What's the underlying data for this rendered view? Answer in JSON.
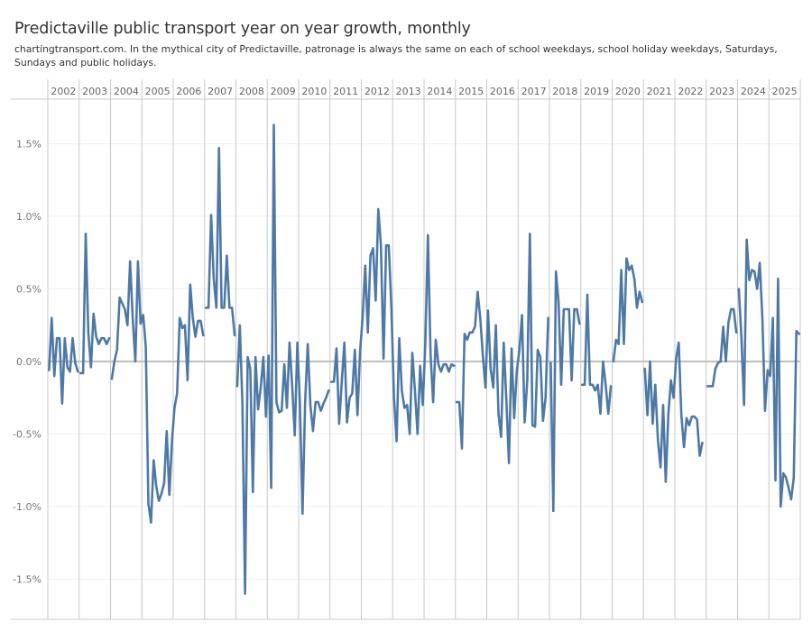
{
  "header": {
    "title": "Predictaville public transport year on year growth, monthly",
    "subtitle": "chartingtransport.com.  In the mythical city of Predictaville, patronage is always the same on each of school weekdays, school holiday weekdays, Saturdays, Sundays and public holidays."
  },
  "colors": {
    "line": "#4e79a7",
    "grid": "#efefef",
    "divider": "#c8c8c8",
    "zero": "#c0c0c0",
    "text": "#333333"
  },
  "chart_data": {
    "type": "line",
    "title": "Predictaville public transport year on year growth, monthly",
    "xlabel": "",
    "ylabel": "",
    "x_grouping": "year columns, 12 months each",
    "years": [
      "2002",
      "2003",
      "2004",
      "2005",
      "2006",
      "2007",
      "2008",
      "2009",
      "2010",
      "2011",
      "2012",
      "2013",
      "2014",
      "2015",
      "2016",
      "2017",
      "2018",
      "2019",
      "2020",
      "2021",
      "2022",
      "2023",
      "2024",
      "2025"
    ],
    "y_ticks": [
      {
        "value": 1.5,
        "label": "1.5%"
      },
      {
        "value": 1.0,
        "label": "1.0%"
      },
      {
        "value": 0.5,
        "label": "0.5%"
      },
      {
        "value": 0.0,
        "label": "0.0%"
      },
      {
        "value": -0.5,
        "label": "-0.5%"
      },
      {
        "value": -1.0,
        "label": "-1.0%"
      },
      {
        "value": -1.5,
        "label": "-1.5%"
      }
    ],
    "ylim": [
      -1.78,
      1.8
    ],
    "grid": true,
    "legend": "none",
    "series": [
      {
        "name": "Year on year growth (%)",
        "unit": "%",
        "values_by_year": {
          "2002": [
            -0.06,
            0.3,
            -0.1,
            0.16,
            0.16,
            -0.29,
            0.16,
            -0.04,
            -0.07,
            0.16,
            -0.01,
            -0.07
          ],
          "2003": [
            -0.08,
            -0.08,
            0.88,
            0.2,
            -0.04,
            0.33,
            0.17,
            0.12,
            0.16,
            0.16,
            0.12,
            0.16
          ],
          "2004": [
            -0.12,
            0.0,
            0.08,
            0.44,
            0.4,
            0.36,
            0.25,
            0.69,
            0.3,
            0.0,
            0.69,
            0.26
          ],
          "2005": [
            0.32,
            0.1,
            -0.98,
            -1.11,
            -0.68,
            -0.86,
            -0.96,
            -0.91,
            -0.84,
            -0.48,
            -0.92,
            -0.55
          ],
          "2006": [
            -0.32,
            -0.22,
            0.3,
            0.23,
            0.25,
            -0.13,
            0.53,
            0.3,
            0.17,
            0.28,
            0.28,
            0.18
          ],
          "2007": [
            0.37,
            0.37,
            1.01,
            0.57,
            0.37,
            1.47,
            0.37,
            0.37,
            0.73,
            0.37,
            0.37,
            0.18
          ],
          "2008": [
            -0.17,
            0.25,
            -0.29,
            -1.6,
            0.03,
            -0.05,
            -0.9,
            0.03,
            -0.33,
            -0.18,
            0.03,
            -0.38
          ],
          "2009": [
            0.04,
            -0.87,
            1.63,
            -0.28,
            -0.35,
            -0.34,
            -0.02,
            -0.32,
            0.13,
            -0.16,
            -0.51,
            0.13
          ],
          "2010": [
            -0.29,
            -1.05,
            -0.28,
            0.12,
            -0.3,
            -0.48,
            -0.28,
            -0.28,
            -0.34,
            -0.29,
            -0.25,
            -0.2
          ],
          "2011": [
            -0.14,
            -0.14,
            0.09,
            -0.43,
            -0.14,
            0.13,
            -0.42,
            -0.25,
            -0.22,
            0.08,
            -0.37,
            0.07
          ],
          "2012": [
            0.3,
            0.66,
            0.2,
            0.73,
            0.78,
            0.42,
            1.05,
            0.8,
            0.02,
            0.8,
            0.8,
            0.37
          ],
          "2013": [
            -0.25,
            -0.55,
            0.16,
            -0.2,
            -0.32,
            -0.3,
            -0.5,
            0.06,
            -0.2,
            -0.5,
            -0.03,
            -0.3
          ],
          "2014": [
            0.12,
            0.87,
            0.05,
            -0.28,
            0.15,
            -0.02,
            -0.07,
            -0.02,
            -0.02,
            -0.07,
            -0.02,
            -0.03
          ],
          "2015": [
            -0.28,
            -0.28,
            -0.6,
            0.19,
            0.15,
            0.2,
            0.2,
            0.24,
            0.48,
            0.3,
            0.04,
            -0.18
          ],
          "2016": [
            0.35,
            -0.05,
            -0.18,
            0.25,
            -0.36,
            -0.52,
            0.13,
            -0.26,
            -0.7,
            0.09,
            -0.39,
            -0.07
          ],
          "2017": [
            0.08,
            0.32,
            -0.42,
            -0.13,
            0.88,
            -0.44,
            -0.45,
            0.08,
            0.03,
            -0.41,
            -0.25,
            0.3
          ],
          "2018": [
            -0.01,
            -1.03,
            0.62,
            0.41,
            -0.16,
            0.36,
            0.36,
            0.36,
            -0.13,
            0.36,
            0.36,
            0.26
          ],
          "2019": [
            -0.16,
            -0.16,
            0.46,
            -0.16,
            -0.16,
            -0.2,
            -0.16,
            -0.36,
            0.0,
            -0.16,
            -0.36,
            -0.17
          ],
          "2020": [
            0.0,
            0.15,
            0.12,
            0.63,
            0.12,
            0.71,
            0.63,
            0.66,
            0.57,
            0.37,
            0.48,
            0.41
          ],
          "2021": [
            -0.05,
            -0.37,
            0.0,
            -0.43,
            -0.16,
            -0.54,
            -0.73,
            -0.3,
            -0.83,
            -0.36,
            -0.13,
            -0.25
          ],
          "2022": [
            0.02,
            0.13,
            -0.37,
            -0.59,
            -0.39,
            -0.44,
            -0.38,
            -0.38,
            -0.4,
            -0.65,
            -0.56,
            null
          ],
          "2023": [
            -0.17,
            -0.17,
            -0.17,
            -0.05,
            -0.01,
            0.0,
            0.24,
            0.0,
            0.27,
            0.36,
            0.36,
            0.2
          ],
          "2024": [
            0.5,
            0.16,
            -0.3,
            0.84,
            0.56,
            0.63,
            0.62,
            0.5,
            0.68,
            0.3,
            -0.34,
            -0.06
          ],
          "2025": [
            -0.1,
            0.3,
            -0.82,
            0.57,
            -1.0,
            -0.77,
            -0.8,
            -0.87,
            -0.95,
            -0.8,
            0.21,
            0.19
          ]
        },
        "gaps_after": [
          "2002-12",
          "2003-12",
          "2006-12",
          "2007-12",
          "2010-12",
          "2014-12",
          "2017-12",
          "2018-12",
          "2019-12",
          "2020-12",
          "2022-11",
          "2023-12"
        ]
      }
    ]
  }
}
